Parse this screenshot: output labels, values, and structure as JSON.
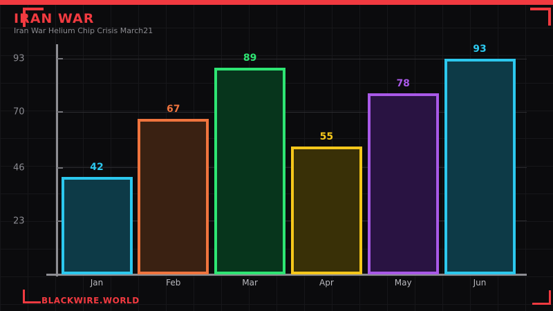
{
  "meta": {
    "accent_color": "#f13a40",
    "background_color": "#0b0b0d",
    "axis_color": "#8e8e93",
    "gridline_color": "#2b2b2f"
  },
  "header": {
    "title": "IRAN WAR",
    "subtitle": "Iran War Helium Chip Crisis March21"
  },
  "footer": {
    "brand": "BLACKWIRE.WORLD"
  },
  "chart_data": {
    "type": "bar",
    "title": "IRAN WAR",
    "subtitle": "Iran War Helium Chip Crisis March21",
    "categories": [
      "Jan",
      "Feb",
      "Mar",
      "Apr",
      "May",
      "Jun"
    ],
    "values": [
      42,
      67,
      89,
      55,
      78,
      93
    ],
    "bar_border_colors": [
      "#2cc8ee",
      "#f0743e",
      "#2ee573",
      "#f5c71b",
      "#a959e8",
      "#2cc8ee"
    ],
    "bar_fill_colors": [
      "#0d3a47",
      "#3a2112",
      "#07351c",
      "#393007",
      "#291342",
      "#0d3a47"
    ],
    "value_label_colors": [
      "#2cc8ee",
      "#f0743e",
      "#2ee573",
      "#f5c71b",
      "#a959e8",
      "#2cc8ee"
    ],
    "y_ticks": [
      23,
      46,
      70,
      93
    ],
    "ylim": [
      0,
      99
    ],
    "xlabel": "",
    "ylabel": "",
    "grid": true,
    "legend": false,
    "value_labels": true
  }
}
